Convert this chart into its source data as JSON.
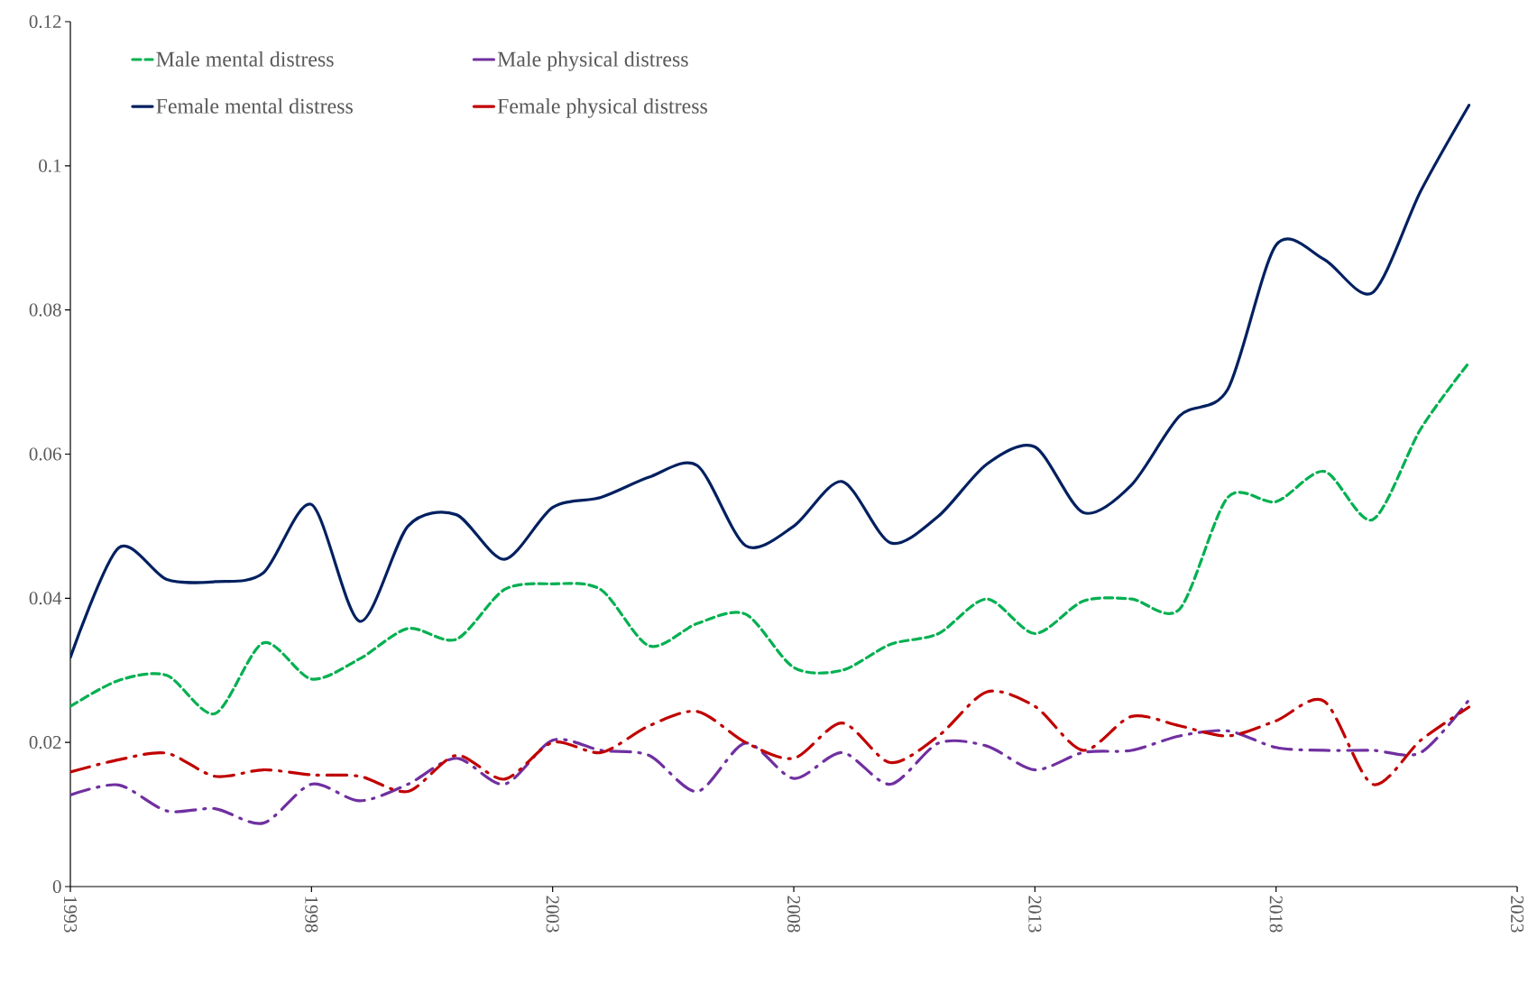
{
  "chart_data": {
    "type": "line",
    "x": [
      1993,
      1994,
      1995,
      1996,
      1997,
      1998,
      1999,
      2000,
      2001,
      2002,
      2003,
      2004,
      2005,
      2006,
      2007,
      2008,
      2009,
      2010,
      2011,
      2012,
      2013,
      2014,
      2015,
      2016,
      2017,
      2018,
      2019,
      2020,
      2021,
      2022
    ],
    "series": [
      {
        "name": "Male mental distress",
        "color": "#00b050",
        "line_style": "dashed",
        "values": [
          0.025,
          0.0286,
          0.0293,
          0.024,
          0.0338,
          0.0288,
          0.0316,
          0.0358,
          0.0343,
          0.0412,
          0.042,
          0.0412,
          0.0334,
          0.0365,
          0.0378,
          0.0304,
          0.03,
          0.0336,
          0.0351,
          0.0399,
          0.0351,
          0.0396,
          0.0399,
          0.0385,
          0.054,
          0.0534,
          0.0576,
          0.0509,
          0.0635,
          0.0727
        ]
      },
      {
        "name": "Male physical distress",
        "color": "#7030a0",
        "line_style": "dashdot",
        "values": [
          0.0127,
          0.0141,
          0.0105,
          0.0108,
          0.0088,
          0.0142,
          0.0119,
          0.0142,
          0.0178,
          0.0142,
          0.0203,
          0.0189,
          0.0182,
          0.0132,
          0.0199,
          0.015,
          0.0186,
          0.0142,
          0.0199,
          0.0195,
          0.0162,
          0.0186,
          0.0189,
          0.0209,
          0.0216,
          0.0193,
          0.0189,
          0.0189,
          0.0186,
          0.0259
        ]
      },
      {
        "name": "Female mental distress",
        "color": "#002060",
        "line_style": "solid",
        "values": [
          0.0318,
          0.047,
          0.0426,
          0.0423,
          0.0435,
          0.053,
          0.0368,
          0.05,
          0.0516,
          0.0454,
          0.0526,
          0.054,
          0.0568,
          0.0584,
          0.0473,
          0.05,
          0.0562,
          0.0477,
          0.0514,
          0.0586,
          0.061,
          0.0519,
          0.0557,
          0.0653,
          0.069,
          0.089,
          0.087,
          0.0824,
          0.0965,
          0.1084
        ]
      },
      {
        "name": "Female physical distress",
        "color": "#c00000",
        "line_style": "dashdot",
        "values": [
          0.0159,
          0.0176,
          0.0185,
          0.0153,
          0.0162,
          0.0155,
          0.0153,
          0.0132,
          0.0182,
          0.0149,
          0.02,
          0.0186,
          0.0223,
          0.0243,
          0.02,
          0.0178,
          0.0227,
          0.0172,
          0.0209,
          0.027,
          0.025,
          0.0189,
          0.0236,
          0.0223,
          0.0209,
          0.023,
          0.0257,
          0.0142,
          0.0203,
          0.0249
        ]
      }
    ],
    "xlim": [
      1993,
      2023
    ],
    "xticks": [
      1993,
      1998,
      2003,
      2008,
      2013,
      2018,
      2023
    ],
    "ylim": [
      0,
      0.12
    ],
    "yticks": [
      0,
      0.02,
      0.04,
      0.06,
      0.08,
      0.1,
      0.12
    ],
    "legend": "top left"
  }
}
